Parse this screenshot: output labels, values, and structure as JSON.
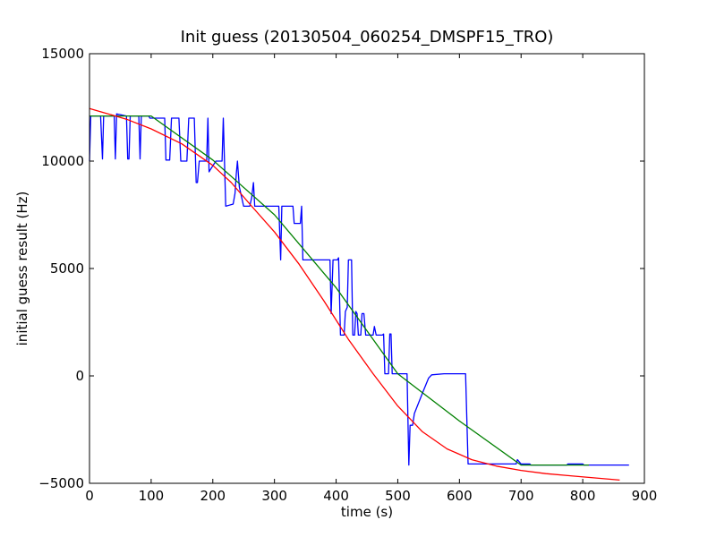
{
  "chart_data": {
    "type": "line",
    "title": "Init guess (20130504_060254_DMSPF15_TRO)",
    "xlabel": "time (s)",
    "ylabel": "initial guess result (Hz)",
    "xlim": [
      0,
      900
    ],
    "ylim": [
      -5000,
      15000
    ],
    "xticks": [
      0,
      100,
      200,
      300,
      400,
      500,
      600,
      700,
      800,
      900
    ],
    "yticks": [
      -5000,
      0,
      5000,
      10000,
      15000
    ],
    "xtick_labels": [
      "0",
      "100",
      "200",
      "300",
      "400",
      "500",
      "600",
      "700",
      "800",
      "900"
    ],
    "ytick_labels": [
      "−5000",
      "0",
      "5000",
      "10000",
      "15000"
    ],
    "grid": false,
    "series": [
      {
        "color": "#0000ff",
        "points": [
          [
            0,
            10000
          ],
          [
            2,
            12100
          ],
          [
            18,
            12100
          ],
          [
            21,
            10100
          ],
          [
            23,
            12100
          ],
          [
            40,
            12100
          ],
          [
            42,
            10100
          ],
          [
            44,
            12200
          ],
          [
            60,
            12100
          ],
          [
            62,
            10100
          ],
          [
            64,
            10100
          ],
          [
            66,
            12100
          ],
          [
            80,
            12100
          ],
          [
            82,
            10100
          ],
          [
            84,
            12100
          ],
          [
            96,
            12100
          ],
          [
            98,
            12000
          ],
          [
            122,
            12000
          ],
          [
            124,
            10050
          ],
          [
            130,
            10050
          ],
          [
            133,
            12000
          ],
          [
            145,
            12000
          ],
          [
            148,
            10000
          ],
          [
            158,
            10000
          ],
          [
            161,
            12000
          ],
          [
            170,
            12000
          ],
          [
            173,
            9000
          ],
          [
            175,
            9000
          ],
          [
            178,
            10000
          ],
          [
            190,
            10000
          ],
          [
            192,
            12000
          ],
          [
            194,
            9500
          ],
          [
            196,
            9600
          ],
          [
            205,
            10000
          ],
          [
            215,
            10000
          ],
          [
            217,
            12000
          ],
          [
            221,
            7900
          ],
          [
            233,
            8000
          ],
          [
            236,
            8500
          ],
          [
            238,
            9400
          ],
          [
            240,
            10000
          ],
          [
            243,
            8800
          ],
          [
            250,
            7900
          ],
          [
            260,
            7900
          ],
          [
            263,
            8300
          ],
          [
            266,
            9000
          ],
          [
            268,
            7900
          ],
          [
            305,
            7900
          ],
          [
            307,
            7900
          ],
          [
            310,
            5400
          ],
          [
            312,
            7900
          ],
          [
            330,
            7900
          ],
          [
            332,
            7100
          ],
          [
            338,
            7100
          ],
          [
            342,
            7100
          ],
          [
            344,
            7900
          ],
          [
            346,
            5400
          ],
          [
            390,
            5400
          ],
          [
            392,
            2900
          ],
          [
            395,
            5400
          ],
          [
            402,
            5400
          ],
          [
            404,
            5500
          ],
          [
            407,
            1900
          ],
          [
            413,
            1900
          ],
          [
            415,
            3000
          ],
          [
            418,
            3200
          ],
          [
            420,
            5400
          ],
          [
            425,
            5400
          ],
          [
            427,
            1900
          ],
          [
            430,
            1900
          ],
          [
            432,
            3000
          ],
          [
            434,
            2900
          ],
          [
            436,
            1900
          ],
          [
            440,
            1900
          ],
          [
            442,
            2900
          ],
          [
            445,
            2900
          ],
          [
            448,
            1900
          ],
          [
            460,
            1900
          ],
          [
            462,
            2300
          ],
          [
            465,
            1900
          ],
          [
            475,
            1900
          ],
          [
            477,
            1950
          ],
          [
            479,
            100
          ],
          [
            485,
            100
          ],
          [
            487,
            1950
          ],
          [
            489,
            1950
          ],
          [
            491,
            100
          ],
          [
            515,
            100
          ],
          [
            518,
            -4150
          ],
          [
            520,
            -2300
          ],
          [
            524,
            -2300
          ],
          [
            527,
            -1750
          ],
          [
            540,
            -800
          ],
          [
            550,
            -100
          ],
          [
            555,
            50
          ],
          [
            575,
            100
          ],
          [
            610,
            100
          ],
          [
            614,
            -4100
          ],
          [
            692,
            -4100
          ],
          [
            694,
            -3900
          ],
          [
            700,
            -4100
          ],
          [
            714,
            -4100
          ],
          [
            716,
            -4150
          ],
          [
            774,
            -4150
          ],
          [
            776,
            -4100
          ],
          [
            800,
            -4100
          ],
          [
            802,
            -4150
          ],
          [
            875,
            -4150
          ]
        ]
      },
      {
        "color": "#008000",
        "points": [
          [
            0,
            12100
          ],
          [
            100,
            12100
          ],
          [
            200,
            10050
          ],
          [
            300,
            7500
          ],
          [
            400,
            4100
          ],
          [
            500,
            100
          ],
          [
            600,
            -2100
          ],
          [
            700,
            -4150
          ],
          [
            810,
            -4150
          ]
        ]
      },
      {
        "color": "#ff0000",
        "points": [
          [
            0,
            12450
          ],
          [
            30,
            12200
          ],
          [
            60,
            11950
          ],
          [
            100,
            11500
          ],
          [
            150,
            10800
          ],
          [
            200,
            9800
          ],
          [
            230,
            9000
          ],
          [
            260,
            8000
          ],
          [
            300,
            6700
          ],
          [
            340,
            5200
          ],
          [
            380,
            3500
          ],
          [
            420,
            1700
          ],
          [
            460,
            100
          ],
          [
            500,
            -1400
          ],
          [
            540,
            -2600
          ],
          [
            580,
            -3400
          ],
          [
            620,
            -3900
          ],
          [
            660,
            -4200
          ],
          [
            700,
            -4400
          ],
          [
            740,
            -4550
          ],
          [
            780,
            -4650
          ],
          [
            820,
            -4750
          ],
          [
            860,
            -4850
          ]
        ]
      }
    ]
  }
}
